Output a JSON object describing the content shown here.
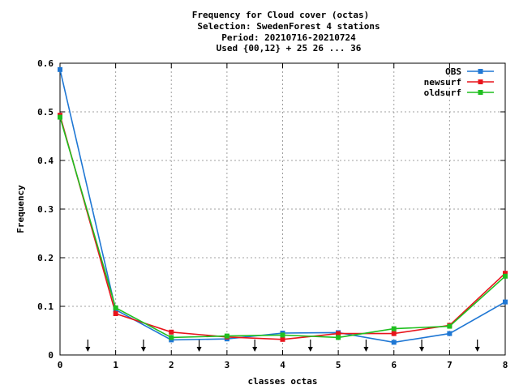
{
  "chart_data": {
    "type": "line",
    "title_lines": [
      "Frequency  for Cloud cover (octas)",
      "Selection: SwedenForest      4 stations",
      "Period: 20210716-20210724",
      "Used {00,12} + 25 26 ... 36"
    ],
    "xlabel": "classes octas",
    "ylabel": "Frequency",
    "x": [
      0,
      1,
      2,
      3,
      4,
      5,
      6,
      7,
      8
    ],
    "xlim": [
      0,
      8
    ],
    "ylim": [
      0,
      0.6
    ],
    "xticks": [
      "0",
      "1",
      "2",
      "3",
      "4",
      "5",
      "6",
      "7",
      "8"
    ],
    "yticks": [
      "0",
      "0.1",
      "0.2",
      "0.3",
      "0.4",
      "0.5",
      "0.6"
    ],
    "grid": true,
    "legend_position": "top-right",
    "class_boundaries": [
      0.5,
      1.5,
      2.5,
      3.5,
      4.5,
      5.5,
      6.5,
      7.5
    ],
    "series": [
      {
        "name": "OBS",
        "color": "#1f77d4",
        "values": [
          0.587,
          0.093,
          0.031,
          0.033,
          0.045,
          0.046,
          0.026,
          0.044,
          0.109
        ]
      },
      {
        "name": "newsurf",
        "color": "#e8141c",
        "values": [
          0.493,
          0.085,
          0.047,
          0.037,
          0.032,
          0.044,
          0.044,
          0.061,
          0.168
        ]
      },
      {
        "name": "oldsurf",
        "color": "#1fbf1f",
        "values": [
          0.489,
          0.097,
          0.036,
          0.039,
          0.041,
          0.036,
          0.054,
          0.059,
          0.162
        ]
      }
    ]
  }
}
